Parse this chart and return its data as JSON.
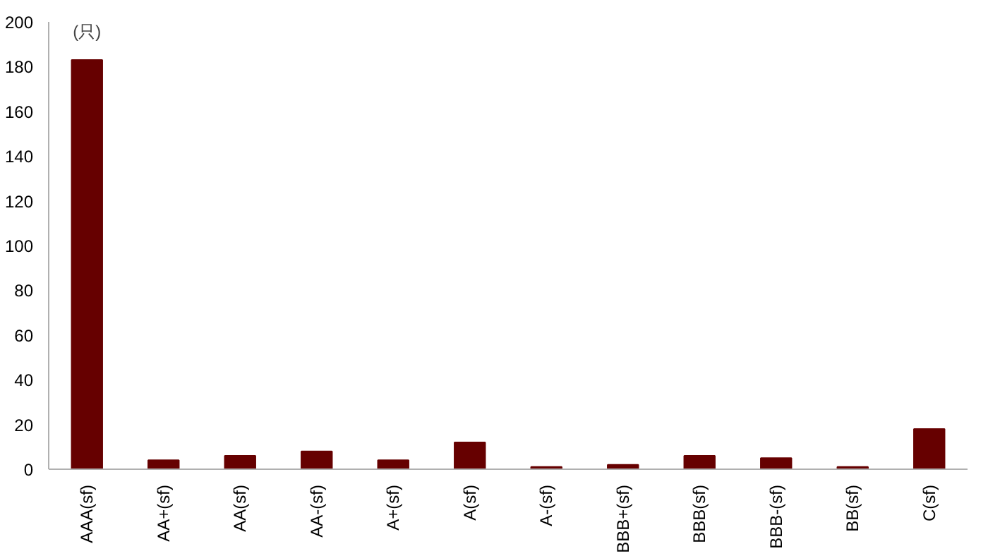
{
  "chart_data": {
    "type": "bar",
    "ylabel": "(只)",
    "categories": [
      "AAA(sf)",
      "AA+(sf)",
      "AA(sf)",
      "AA-(sf)",
      "A+(sf)",
      "A(sf)",
      "A-(sf)",
      "BBB+(sf)",
      "BBB(sf)",
      "BBB-(sf)",
      "BB(sf)",
      "C(sf)"
    ],
    "values": [
      183,
      4,
      6,
      8,
      4,
      12,
      1,
      2,
      6,
      5,
      1,
      18
    ],
    "color": "#660000",
    "ylim": [
      0,
      200
    ],
    "yticks": [
      0,
      20,
      40,
      60,
      80,
      100,
      120,
      140,
      160,
      180,
      200
    ],
    "grid": false
  }
}
